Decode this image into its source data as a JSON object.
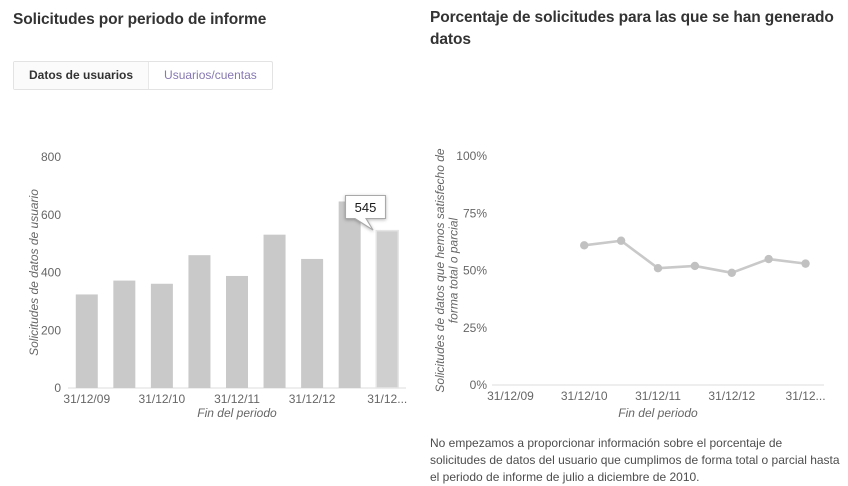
{
  "left_panel": {
    "title": "Solicitudes por periodo de informe",
    "tabs": [
      {
        "label": "Datos de usuarios",
        "active": true
      },
      {
        "label": "Usuarios/cuentas",
        "active": false
      }
    ]
  },
  "right_panel": {
    "title": "Porcentaje de solicitudes para las que se han generado datos",
    "footnote": "No empezamos a proporcionar información sobre el porcentaje de solicitudes de datos del usuario que cumplimos de forma total o parcial hasta el periodo de informe de julio a diciembre de 2010."
  },
  "colors": {
    "bar": "#c9c9c9",
    "bar_highlight": "#cfcfcf",
    "bar_highlight_stroke": "#e5e5e5",
    "line": "#c9c9c9",
    "marker": "#c1c1c1",
    "axis_line": "#dcdcdc",
    "tab_link": "#8678b2",
    "text_dark": "#333333",
    "text_muted": "#666666"
  },
  "chart_data": [
    {
      "type": "bar",
      "title": "Solicitudes por periodo de informe",
      "xlabel": "Fin del periodo",
      "ylabel": "Solicitudes de datos de usuario",
      "ylabel_lines": [
        "Solicitudes de datos de usuario"
      ],
      "ylim": [
        0,
        800
      ],
      "yticks": [
        0,
        200,
        400,
        600,
        800
      ],
      "ytick_labels": [
        "0",
        "200",
        "400",
        "600",
        "800"
      ],
      "x_tick_labels": [
        "31/12/09",
        "",
        "31/12/10",
        "",
        "31/12/11",
        "",
        "31/12/12",
        "",
        "31/12..."
      ],
      "values": [
        324,
        372,
        361,
        460,
        388,
        531,
        447,
        646,
        545
      ],
      "highlighted_index": 8,
      "tooltip": {
        "text": "545"
      },
      "legend": "none",
      "grid": "off"
    },
    {
      "type": "line",
      "title": "Porcentaje de solicitudes para las que se han generado datos",
      "xlabel": "Fin del periodo",
      "ylabel": "Solicitudes de datos que hemos satisfecho de forma total o parcial",
      "ylabel_lines": [
        "Solicitudes de datos que hemos satisfecho de",
        "forma total o parcial"
      ],
      "ylim": [
        0,
        100
      ],
      "yticks": [
        0,
        25,
        50,
        75,
        100
      ],
      "ytick_labels": [
        "0%",
        "25%",
        "50%",
        "75%",
        "100%"
      ],
      "x_tick_labels": [
        "31/12/09",
        "",
        "31/12/10",
        "",
        "31/12/11",
        "",
        "31/12/12",
        "",
        "31/12..."
      ],
      "values": [
        null,
        null,
        61,
        63,
        51,
        52,
        49,
        55,
        53
      ],
      "legend": "none",
      "grid": "off"
    }
  ]
}
